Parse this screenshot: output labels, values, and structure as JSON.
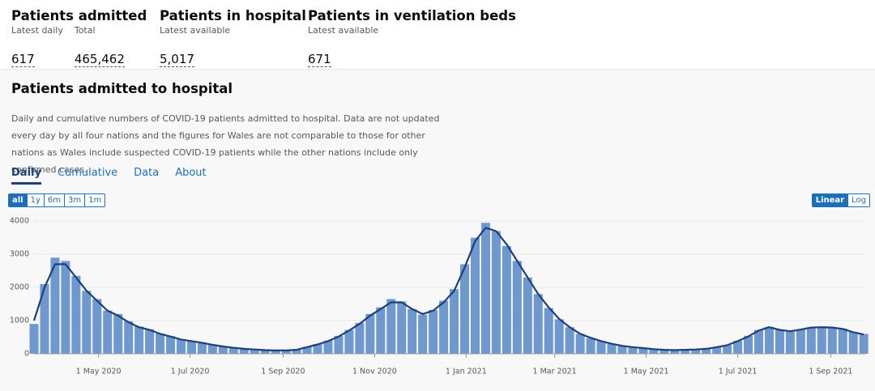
{
  "metrics": [
    {
      "title": "Patients admitted",
      "items": [
        {
          "label": "Latest daily",
          "value": "617"
        },
        {
          "label": "Total",
          "value": "465,462"
        }
      ]
    },
    {
      "title": "Patients in hospital",
      "items": [
        {
          "label": "Latest available",
          "value": "5,017"
        }
      ]
    },
    {
      "title": "Patients in ventilation beds",
      "items": [
        {
          "label": "Latest available",
          "value": "671"
        }
      ]
    }
  ],
  "card": {
    "title": "Patients admitted to hospital",
    "description": "Daily and cumulative numbers of COVID-19 patients admitted to hospital. Data are not updated every day by all four nations and the figures for Wales are not comparable to those for other nations as Wales include suspected COVID-19 patients while the other nations include only confirmed cases.",
    "tabs": [
      "Daily",
      "Cumulative",
      "Data",
      "About"
    ],
    "ranges": [
      "all",
      "1y",
      "6m",
      "3m",
      "1m"
    ],
    "scales": [
      "Linear",
      "Log"
    ]
  },
  "chart_data": {
    "type": "bar-line",
    "x": [
      "2020-03-19",
      "2020-03-26",
      "2020-04-02",
      "2020-04-09",
      "2020-04-16",
      "2020-04-23",
      "2020-04-30",
      "2020-05-07",
      "2020-05-14",
      "2020-05-21",
      "2020-05-28",
      "2020-06-04",
      "2020-06-11",
      "2020-06-18",
      "2020-06-25",
      "2020-07-02",
      "2020-07-09",
      "2020-07-16",
      "2020-07-23",
      "2020-07-30",
      "2020-08-06",
      "2020-08-13",
      "2020-08-20",
      "2020-08-27",
      "2020-09-03",
      "2020-09-10",
      "2020-09-17",
      "2020-09-24",
      "2020-10-01",
      "2020-10-08",
      "2020-10-15",
      "2020-10-22",
      "2020-10-29",
      "2020-11-05",
      "2020-11-12",
      "2020-11-19",
      "2020-11-26",
      "2020-12-03",
      "2020-12-10",
      "2020-12-17",
      "2020-12-24",
      "2020-12-31",
      "2021-01-07",
      "2021-01-14",
      "2021-01-21",
      "2021-01-28",
      "2021-02-04",
      "2021-02-11",
      "2021-02-18",
      "2021-02-25",
      "2021-03-04",
      "2021-03-11",
      "2021-03-18",
      "2021-03-25",
      "2021-04-01",
      "2021-04-08",
      "2021-04-15",
      "2021-04-22",
      "2021-04-29",
      "2021-05-06",
      "2021-05-13",
      "2021-05-20",
      "2021-05-27",
      "2021-06-03",
      "2021-06-10",
      "2021-06-17",
      "2021-06-24",
      "2021-07-01",
      "2021-07-08",
      "2021-07-15",
      "2021-07-22",
      "2021-07-29",
      "2021-08-05",
      "2021-08-12",
      "2021-08-19",
      "2021-08-26",
      "2021-09-02",
      "2021-09-09",
      "2021-09-16",
      "2021-09-23"
    ],
    "series": [
      {
        "kind": "bar",
        "color": "#6f98cf",
        "values": [
          900,
          2100,
          2900,
          2800,
          2350,
          1900,
          1650,
          1300,
          1200,
          980,
          820,
          740,
          610,
          530,
          440,
          390,
          340,
          280,
          230,
          185,
          155,
          135,
          115,
          105,
          105,
          125,
          210,
          290,
          400,
          540,
          720,
          930,
          1200,
          1400,
          1650,
          1580,
          1350,
          1180,
          1320,
          1600,
          1950,
          2700,
          3500,
          3950,
          3700,
          3250,
          2800,
          2300,
          1800,
          1380,
          1040,
          800,
          600,
          470,
          380,
          300,
          240,
          200,
          170,
          140,
          120,
          110,
          120,
          130,
          150,
          200,
          260,
          390,
          540,
          720,
          810,
          720,
          670,
          740,
          800,
          810,
          790,
          760,
          660,
          600
        ]
      },
      {
        "kind": "line",
        "color": "#1d3f7a",
        "values": [
          1000,
          2000,
          2700,
          2700,
          2300,
          1900,
          1600,
          1300,
          1150,
          950,
          800,
          720,
          600,
          520,
          430,
          380,
          330,
          270,
          220,
          180,
          150,
          130,
          110,
          100,
          100,
          120,
          200,
          280,
          380,
          520,
          700,
          900,
          1150,
          1350,
          1550,
          1550,
          1350,
          1200,
          1300,
          1550,
          1900,
          2600,
          3400,
          3800,
          3700,
          3300,
          2800,
          2300,
          1800,
          1400,
          1050,
          800,
          600,
          480,
          380,
          300,
          240,
          200,
          170,
          140,
          120,
          110,
          120,
          130,
          150,
          200,
          260,
          380,
          520,
          700,
          800,
          720,
          680,
          730,
          790,
          800,
          790,
          750,
          650,
          580
        ]
      }
    ],
    "xlim": [
      "2020-03-19",
      "2021-09-24"
    ],
    "xticks": [
      {
        "value": "2020-05-01",
        "label": "1 May 2020"
      },
      {
        "value": "2020-07-01",
        "label": "1 Jul 2020"
      },
      {
        "value": "2020-09-01",
        "label": "1 Sep 2020"
      },
      {
        "value": "2020-11-01",
        "label": "1 Nov 2020"
      },
      {
        "value": "2021-01-01",
        "label": "1 Jan 2021"
      },
      {
        "value": "2021-03-01",
        "label": "1 Mar 2021"
      },
      {
        "value": "2021-05-01",
        "label": "1 May 2021"
      },
      {
        "value": "2021-07-01",
        "label": "1 Jul 2021"
      },
      {
        "value": "2021-09-01",
        "label": "1 Sep 2021"
      }
    ],
    "ylim": [
      0,
      4200
    ],
    "yticks": [
      0,
      1000,
      2000,
      3000,
      4000
    ],
    "grid": true
  }
}
